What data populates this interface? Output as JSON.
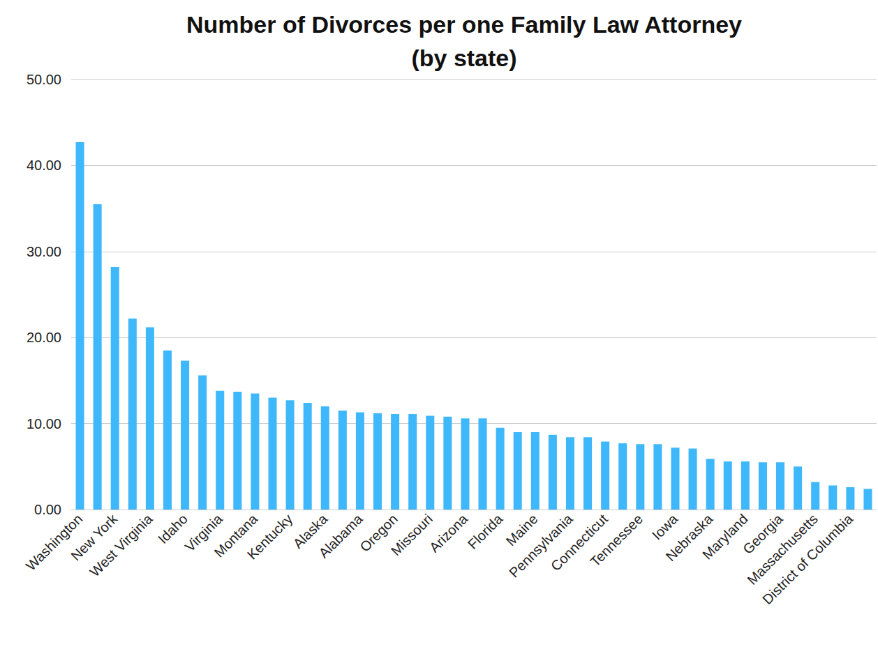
{
  "chart_data": {
    "type": "bar",
    "title": "Number of Divorces per one Family Law Attorney\n(by state)",
    "categories": [
      "Washington",
      null,
      "New York",
      null,
      "West Virginia",
      null,
      "Idaho",
      null,
      "Virginia",
      null,
      "Montana",
      null,
      "Kentucky",
      null,
      "Alaska",
      null,
      "Alabama",
      null,
      "Oregon",
      null,
      "Missouri",
      null,
      "Arizona",
      null,
      "Florida",
      null,
      "Maine",
      null,
      "Pennsylvania",
      null,
      "Connecticut",
      null,
      "Tennessee",
      null,
      "Iowa",
      null,
      "Nebraska",
      null,
      "Maryland",
      null,
      "Georgia",
      null,
      "Massachusetts",
      null,
      "District of Columbia",
      null
    ],
    "values": [
      42.7,
      35.5,
      28.2,
      22.2,
      21.2,
      18.5,
      17.3,
      15.6,
      13.8,
      13.7,
      13.5,
      13.0,
      12.7,
      12.4,
      12.0,
      11.5,
      11.3,
      11.2,
      11.1,
      11.1,
      10.9,
      10.8,
      10.6,
      10.6,
      9.5,
      9.0,
      9.0,
      8.7,
      8.4,
      8.4,
      7.9,
      7.7,
      7.6,
      7.6,
      7.2,
      7.1,
      5.9,
      5.6,
      5.6,
      5.5,
      5.5,
      5.0,
      3.2,
      2.8,
      2.6,
      2.4
    ],
    "color": "#3fb8fb",
    "ylim": [
      0,
      50
    ],
    "yticks": [
      {
        "value": 0,
        "label": "0.00"
      },
      {
        "value": 10,
        "label": "10.00"
      },
      {
        "value": 20,
        "label": "20.00"
      },
      {
        "value": 30,
        "label": "30.00"
      },
      {
        "value": 40,
        "label": "40.00"
      },
      {
        "value": 50,
        "label": "50.00"
      }
    ],
    "grid": true
  }
}
